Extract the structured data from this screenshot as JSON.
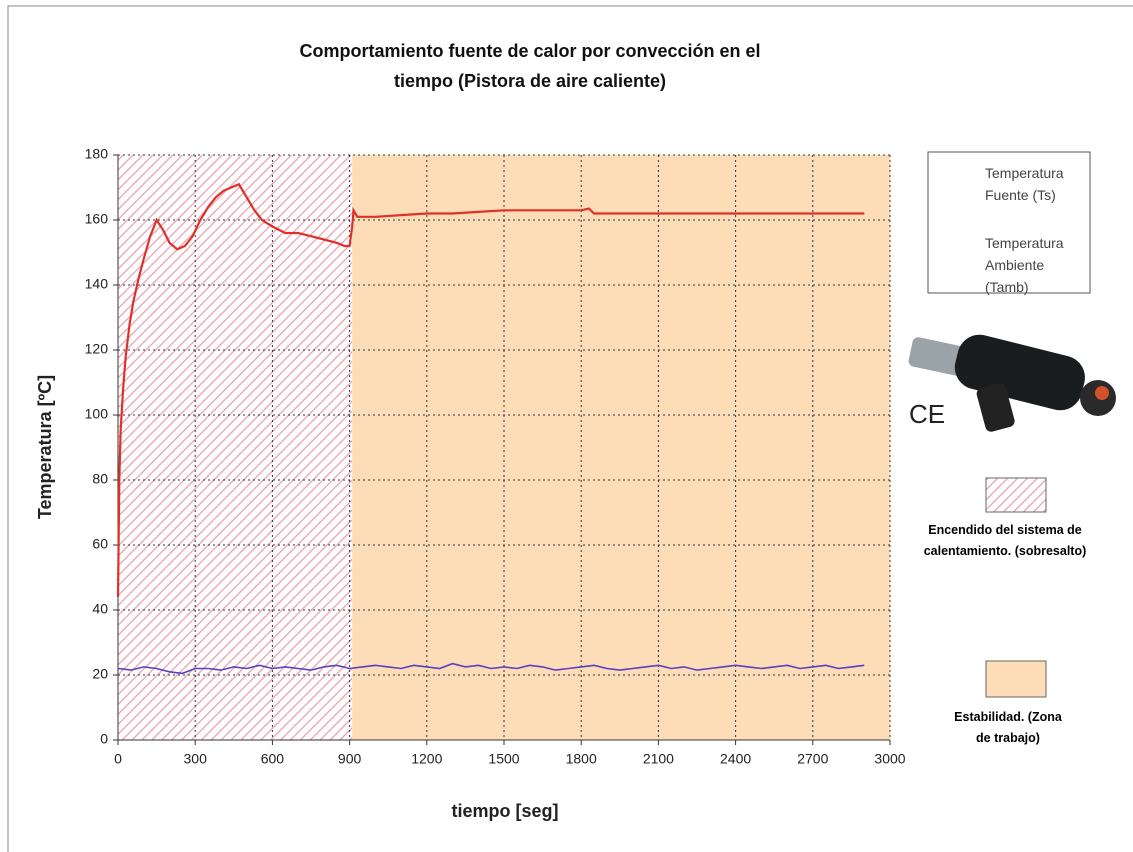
{
  "chart_data": {
    "type": "line",
    "title": "Comportamiento fuente de calor por convección en el tiempo (Pistora de aire caliente)",
    "xlabel": "tiempo [seg]",
    "ylabel": "Temperatura [ºC]",
    "xlim": [
      0,
      3000
    ],
    "xticks": [
      0,
      300,
      600,
      900,
      1200,
      1500,
      1800,
      2100,
      2400,
      2700,
      3000
    ],
    "ylim": [
      0,
      180
    ],
    "yticks": [
      0,
      20,
      40,
      60,
      80,
      100,
      120,
      140,
      160,
      180
    ],
    "grid": true,
    "legend": "right",
    "logo_text": "CE",
    "regions": [
      {
        "name": "Encendido del sistema de calentamiento. (sobresalto)",
        "xrange": [
          0,
          910
        ],
        "color": "#e8a0b0",
        "pattern": "hatch"
      },
      {
        "name": "Estabilidad. (Zona de trabajo)",
        "xrange": [
          910,
          3000
        ],
        "color": "#fddcb8",
        "pattern": "solid"
      }
    ],
    "series": [
      {
        "name": "Temperatura Fuente (Ts)",
        "color": "#e0302a",
        "x": [
          0,
          5,
          10,
          20,
          30,
          45,
          60,
          80,
          100,
          125,
          150,
          175,
          200,
          230,
          260,
          290,
          320,
          350,
          380,
          410,
          440,
          470,
          500,
          530,
          560,
          600,
          650,
          700,
          750,
          800,
          850,
          880,
          900,
          910,
          915,
          930,
          1000,
          1100,
          1200,
          1300,
          1400,
          1500,
          1600,
          1700,
          1800,
          1830,
          1850,
          1900,
          2000,
          2100,
          2200,
          2300,
          2400,
          2500,
          2600,
          2700,
          2800,
          2900
        ],
        "values": [
          44,
          80,
          95,
          108,
          118,
          128,
          135,
          142,
          148,
          155,
          160,
          157,
          153,
          151,
          152,
          155,
          160,
          164,
          167,
          169,
          170,
          171,
          167,
          163,
          160,
          158,
          156,
          156,
          155,
          154,
          153,
          152,
          152,
          158,
          163,
          161,
          161,
          161.5,
          162,
          162,
          162.5,
          163,
          163,
          163,
          163,
          163.5,
          162,
          162,
          162,
          162,
          162,
          162,
          162,
          162,
          162,
          162,
          162,
          162
        ]
      },
      {
        "name": "Temperatura Ambiente (Tamb)",
        "color": "#5a3fc0",
        "x": [
          0,
          50,
          100,
          150,
          200,
          250,
          300,
          350,
          400,
          450,
          500,
          550,
          600,
          650,
          700,
          750,
          800,
          850,
          900,
          950,
          1000,
          1050,
          1100,
          1150,
          1200,
          1250,
          1300,
          1350,
          1400,
          1450,
          1500,
          1550,
          1600,
          1650,
          1700,
          1750,
          1800,
          1850,
          1900,
          1950,
          2000,
          2050,
          2100,
          2150,
          2200,
          2250,
          2300,
          2350,
          2400,
          2450,
          2500,
          2550,
          2600,
          2650,
          2700,
          2750,
          2800,
          2850,
          2900
        ],
        "values": [
          22,
          21.5,
          22.5,
          22,
          21,
          20.5,
          22,
          22,
          21.5,
          22.5,
          22,
          23,
          22,
          22.5,
          22,
          21.5,
          22.5,
          23,
          22,
          22.5,
          23,
          22.5,
          22,
          23,
          22.5,
          22,
          23.5,
          22.5,
          23,
          22,
          22.5,
          22,
          23,
          22.5,
          21.5,
          22,
          22.5,
          23,
          22,
          21.5,
          22,
          22.5,
          23,
          22,
          22.5,
          21.5,
          22,
          22.5,
          23,
          22.5,
          22,
          22.5,
          23,
          22,
          22.5,
          23,
          22,
          22.5,
          23
        ]
      }
    ]
  }
}
